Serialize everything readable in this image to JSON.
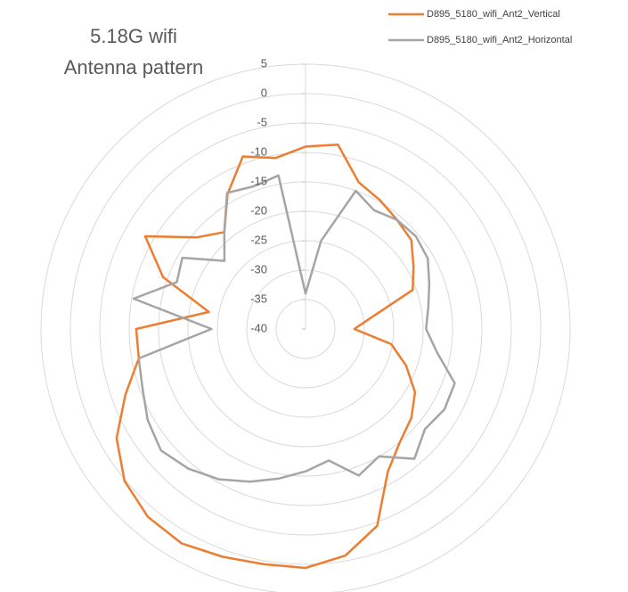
{
  "chart_data": {
    "type": "radar",
    "title": [
      "5.18G wifi",
      "Antenna pattern"
    ],
    "ylim": [
      -40,
      5
    ],
    "yticks": [
      5,
      0,
      -5,
      -10,
      -15,
      -20,
      -25,
      -30,
      -35,
      -40
    ],
    "grid": true,
    "legend": "top-right",
    "series": [
      {
        "name": "D895_5180_wifi_Ant2_Vertical",
        "color": "#ed7d31",
        "values": [
          -9,
          -8.2,
          -13.5,
          -14.7,
          -15.8,
          -16.5,
          -18.8,
          -20.6,
          -28.6,
          -31.7,
          -25.2,
          -21.8,
          -18.5,
          -16.5,
          -15,
          -12,
          -4.4,
          -0.9,
          0.6,
          0.6,
          1.2,
          2.1,
          1.7,
          0.2,
          -2.9,
          -7.4,
          -11.2,
          -11.2,
          -23.3,
          -14.2,
          -8.5,
          -15.8,
          -18.5,
          -13.5,
          -8.8,
          -10.5
        ]
      },
      {
        "name": "D895_5180_wifi_Ant2_Horizontal",
        "color": "#a5a5a5",
        "values": [
          -34,
          -24.8,
          -15,
          -16.7,
          -15.8,
          -15.5,
          -16,
          -17.6,
          -18.8,
          -19.5,
          -17.3,
          -13,
          -12.7,
          -13.5,
          -11.2,
          -15,
          -13.5,
          -17.3,
          -15.8,
          -14.2,
          -12.4,
          -10.5,
          -9,
          -7.9,
          -9,
          -10.5,
          -11.2,
          -24,
          -10.3,
          -16.7,
          -15.8,
          -22,
          -18.5,
          -13.3,
          -14.2,
          -13.5
        ]
      }
    ]
  }
}
